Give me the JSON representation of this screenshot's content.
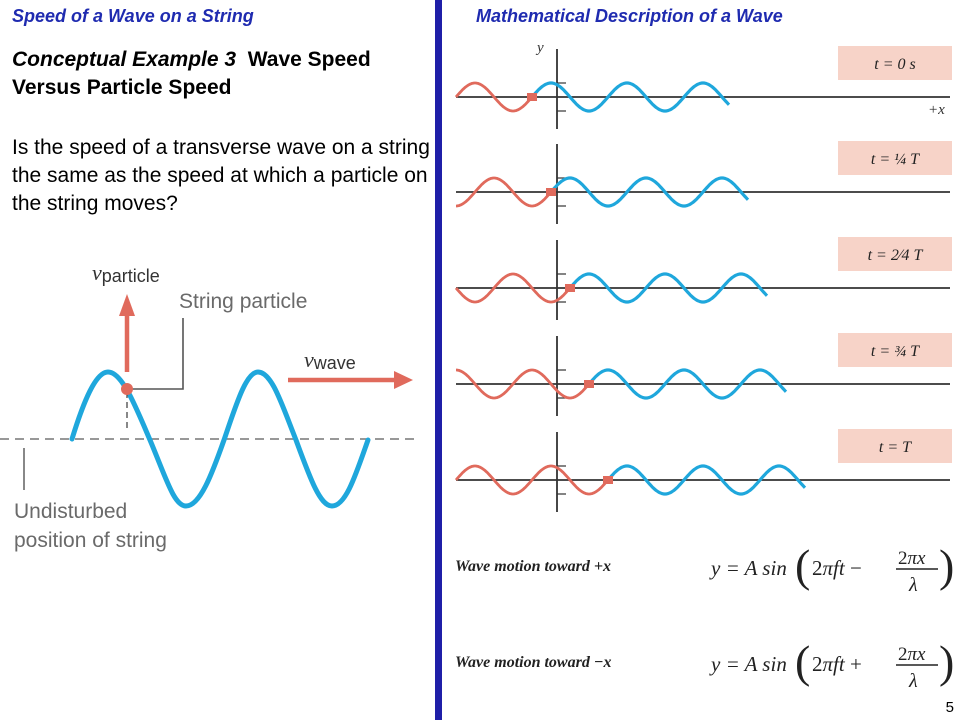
{
  "left_header": "Speed of a Wave on a String",
  "right_header": "Mathematical Description of a Wave",
  "example": {
    "lead": "Conceptual Example 3",
    "title": "Wave Speed Versus Particle Speed",
    "question": "Is the speed of a transverse wave on a string the same as the speed at which a particle on the string moves?"
  },
  "diagram_left": {
    "v_particle_symbol": "v",
    "v_particle_sub": "particle",
    "string_particle_label": "String particle",
    "v_wave_symbol": "v",
    "v_wave_sub": "wave",
    "undisturbed_label_line1": "Undisturbed",
    "undisturbed_label_line2": "position of string"
  },
  "diagram_right": {
    "axis_y": "y",
    "axis_x": "+x",
    "time_labels": [
      "t = 0 s",
      "t = ¼ T",
      "t = 2⁄4 T",
      "t = ¾ T",
      "t = T"
    ]
  },
  "equations": {
    "plus_label": "Wave motion toward +x",
    "plus_formula": "y = A sin(2πft − 2πx/λ)",
    "minus_label": "Wave motion toward −x",
    "minus_formula": "y = A sin(2πft + 2πx/λ)"
  },
  "slide_number": "5",
  "colors": {
    "header_blue": "#1f2bb0",
    "divider": "#1f1fa8",
    "wave_blue": "#1fa7dc",
    "wave_red": "#e06a5c",
    "label_box": "#f7d3c8"
  }
}
